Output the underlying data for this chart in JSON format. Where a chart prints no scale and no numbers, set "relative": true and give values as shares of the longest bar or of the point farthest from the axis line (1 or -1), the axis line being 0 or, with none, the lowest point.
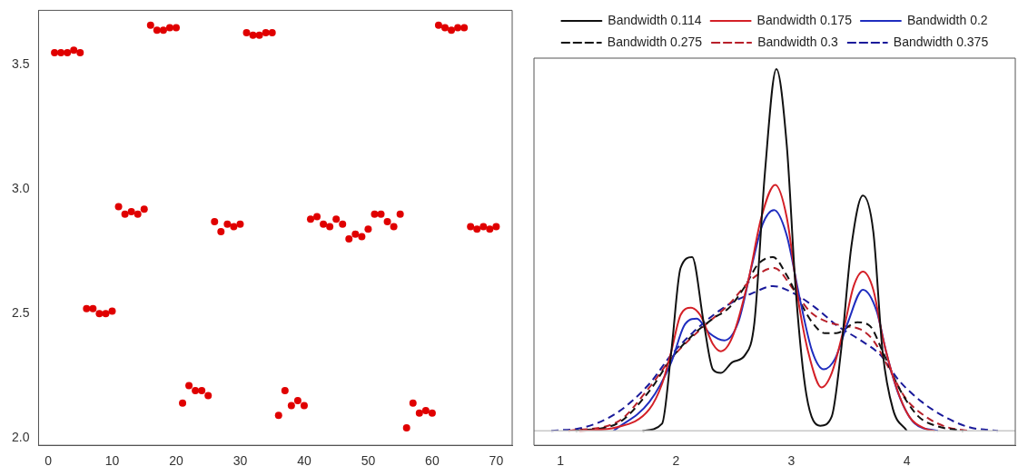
{
  "chart_data": [
    {
      "type": "scatter",
      "x": [
        1,
        2,
        3,
        4,
        5,
        6,
        7,
        8,
        9,
        10,
        11,
        12,
        13,
        14,
        15,
        16,
        17,
        18,
        19,
        20,
        21,
        22,
        23,
        24,
        25,
        26,
        27,
        28,
        29,
        30,
        31,
        32,
        33,
        34,
        35,
        36,
        37,
        38,
        39,
        40,
        41,
        42,
        43,
        44,
        45,
        46,
        47,
        48,
        49,
        50,
        51,
        52,
        53,
        54,
        55,
        56,
        57,
        58,
        59,
        60,
        61,
        62,
        63,
        64,
        65,
        66,
        67,
        68,
        69,
        70
      ],
      "values": [
        3.55,
        3.55,
        3.55,
        3.56,
        3.55,
        2.52,
        2.52,
        2.5,
        2.5,
        2.51,
        2.93,
        2.9,
        2.91,
        2.9,
        2.92,
        3.66,
        3.64,
        3.64,
        3.65,
        3.65,
        2.14,
        2.21,
        2.19,
        2.19,
        2.17,
        2.87,
        2.83,
        2.86,
        2.85,
        2.86,
        3.63,
        3.62,
        3.62,
        3.63,
        3.63,
        2.09,
        2.19,
        2.13,
        2.15,
        2.13,
        2.88,
        2.89,
        2.86,
        2.85,
        2.88,
        2.86,
        2.8,
        2.82,
        2.81,
        2.84,
        2.9,
        2.9,
        2.87,
        2.85,
        2.9,
        2.04,
        2.14,
        2.1,
        2.11,
        2.1,
        3.66,
        3.65,
        3.64,
        3.65,
        3.65,
        2.85,
        2.84,
        2.85,
        2.84,
        2.85
      ],
      "color": "#e00000",
      "marker": "circle",
      "grid": false,
      "legend": false,
      "xlim": [
        -1.5,
        72.5
      ],
      "xticks": [
        0,
        10,
        20,
        30,
        40,
        50,
        60,
        70
      ],
      "ylim": [
        1.97,
        3.72
      ],
      "yticks": [
        {
          "value": 2,
          "label": "2.0"
        },
        2.5,
        {
          "value": 3,
          "label": "3.0"
        },
        3.5
      ]
    },
    {
      "type": "line",
      "relative": true,
      "grid": false,
      "legend": "top",
      "tick_labels": "x",
      "xlim": [
        0.77,
        4.94
      ],
      "xticks": [
        1,
        2,
        3,
        4
      ],
      "series": [
        {
          "name": "Bandwidth 0.114",
          "color": "#111111",
          "line_style": "solid",
          "x": [
            1.71,
            1.88,
            1.96,
            2.04,
            2.14,
            2.24,
            2.32,
            2.39,
            2.49,
            2.6,
            2.68,
            2.77,
            2.87,
            2.96,
            3.04,
            3.13,
            3.25,
            3.35,
            3.43,
            3.52,
            3.62,
            3.71,
            3.79,
            3.88,
            4.0
          ],
          "values": [
            0,
            0.02,
            0.22,
            0.45,
            0.48,
            0.3,
            0.17,
            0.16,
            0.19,
            0.21,
            0.3,
            0.71,
            1.0,
            0.79,
            0.38,
            0.1,
            0.014,
            0.04,
            0.22,
            0.51,
            0.65,
            0.55,
            0.22,
            0.06,
            0
          ]
        },
        {
          "name": "Bandwidth 0.175",
          "color": "#d42027",
          "line_style": "solid",
          "x": [
            1.16,
            1.49,
            1.77,
            1.88,
            1.96,
            2.04,
            2.13,
            2.21,
            2.32,
            2.39,
            2.49,
            2.63,
            2.74,
            2.86,
            2.96,
            3.07,
            3.16,
            3.26,
            3.35,
            3.46,
            3.54,
            3.62,
            3.71,
            3.79,
            3.91,
            4.02,
            4.16,
            4.24
          ],
          "values": [
            0,
            0.01,
            0.06,
            0.13,
            0.22,
            0.32,
            0.34,
            0.32,
            0.24,
            0.22,
            0.26,
            0.42,
            0.59,
            0.68,
            0.59,
            0.34,
            0.2,
            0.12,
            0.16,
            0.29,
            0.4,
            0.44,
            0.39,
            0.26,
            0.12,
            0.04,
            0.006,
            0
          ]
        },
        {
          "name": "Bandwidth 0.2",
          "color": "#1f2dbf",
          "line_style": "solid",
          "x": [
            1.46,
            1.77,
            1.96,
            2.07,
            2.18,
            2.29,
            2.42,
            2.54,
            2.66,
            2.75,
            2.85,
            2.96,
            3.07,
            3.18,
            3.28,
            3.38,
            3.49,
            3.62,
            3.74,
            3.82,
            3.93,
            4.07,
            4.27
          ],
          "values": [
            0,
            0.08,
            0.19,
            0.29,
            0.31,
            0.27,
            0.25,
            0.3,
            0.46,
            0.57,
            0.61,
            0.54,
            0.37,
            0.22,
            0.17,
            0.2,
            0.3,
            0.39,
            0.33,
            0.22,
            0.1,
            0.02,
            0
          ]
        },
        {
          "name": "Bandwidth 0.275",
          "color": "#111111",
          "line_style": "dashed",
          "x": [
            1.13,
            1.49,
            1.77,
            1.96,
            2.13,
            2.32,
            2.46,
            2.6,
            2.71,
            2.84,
            2.96,
            3.07,
            3.18,
            3.29,
            3.39,
            3.57,
            3.68,
            3.79,
            3.93,
            4.1,
            4.27,
            4.49
          ],
          "values": [
            0,
            0.02,
            0.11,
            0.2,
            0.26,
            0.31,
            0.34,
            0.4,
            0.46,
            0.48,
            0.43,
            0.36,
            0.3,
            0.27,
            0.27,
            0.3,
            0.29,
            0.22,
            0.12,
            0.04,
            0.012,
            0
          ]
        },
        {
          "name": "Bandwidth 0.3",
          "color": "#b8202a",
          "line_style": "dashed",
          "x": [
            1.07,
            1.49,
            1.77,
            1.96,
            2.21,
            2.46,
            2.66,
            2.85,
            3.02,
            3.16,
            3.32,
            3.46,
            3.6,
            3.71,
            3.85,
            3.99,
            4.16,
            4.35,
            4.54
          ],
          "values": [
            0,
            0.024,
            0.12,
            0.2,
            0.28,
            0.35,
            0.42,
            0.45,
            0.39,
            0.33,
            0.3,
            0.29,
            0.28,
            0.25,
            0.17,
            0.09,
            0.04,
            0.01,
            0
          ]
        },
        {
          "name": "Bandwidth 0.375",
          "color": "#1a1a9a",
          "line_style": "dashed",
          "x": [
            0.92,
            1.21,
            1.49,
            1.77,
            1.96,
            2.21,
            2.46,
            2.66,
            2.84,
            3.02,
            3.21,
            3.4,
            3.6,
            3.77,
            3.93,
            4.13,
            4.32,
            4.54,
            4.79
          ],
          "values": [
            0,
            0.01,
            0.05,
            0.13,
            0.21,
            0.29,
            0.35,
            0.38,
            0.4,
            0.38,
            0.34,
            0.29,
            0.25,
            0.21,
            0.14,
            0.08,
            0.04,
            0.01,
            0
          ]
        }
      ]
    }
  ]
}
